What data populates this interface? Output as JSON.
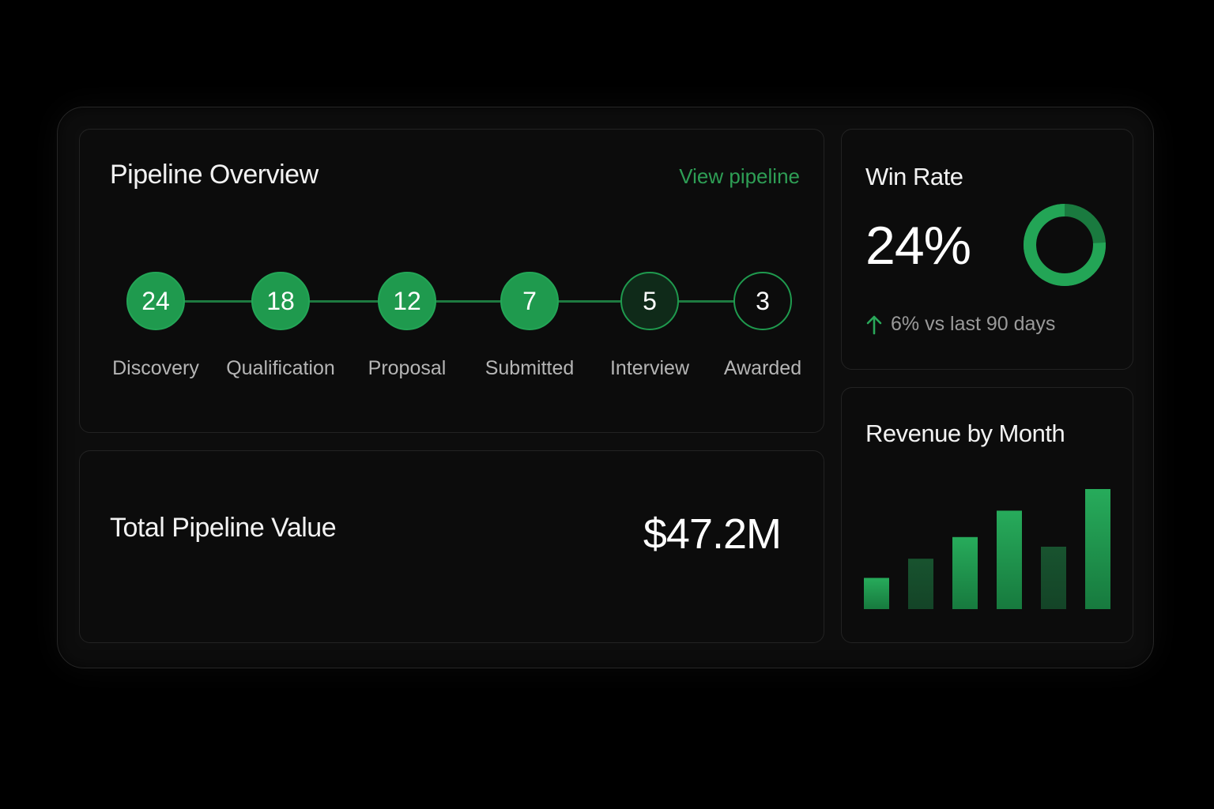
{
  "pipeline": {
    "title": "Pipeline Overview",
    "view_link": "View pipeline",
    "stages": [
      {
        "count": "24",
        "label": "Discovery",
        "style": "filled"
      },
      {
        "count": "18",
        "label": "Qualification",
        "style": "filled"
      },
      {
        "count": "12",
        "label": "Proposal",
        "style": "filled"
      },
      {
        "count": "7",
        "label": "Submitted",
        "style": "filled"
      },
      {
        "count": "5",
        "label": "Interview",
        "style": "dim"
      },
      {
        "count": "3",
        "label": "Awarded",
        "style": "outline"
      }
    ]
  },
  "total": {
    "title": "Total Pipeline Value",
    "value": "$47.2M"
  },
  "win_rate": {
    "title": "Win Rate",
    "value": "24%",
    "fraction": 0.24,
    "change": "6% vs last 90 days",
    "change_icon": "arrow-up-icon"
  },
  "revenue": {
    "title": "Revenue by Month"
  },
  "colors": {
    "accent": "#1f9a4e",
    "accent_dark": "#0f2a19",
    "link": "#2e9e55",
    "card_bg": "#0c0c0c"
  },
  "chart_data": {
    "type": "bar",
    "title": "Revenue by Month",
    "categories": [
      "",
      "",
      "",
      "",
      "",
      ""
    ],
    "values": [
      26,
      42,
      60,
      82,
      52,
      100
    ],
    "ylim": [
      0,
      100
    ],
    "grid": false,
    "legend": "none"
  }
}
